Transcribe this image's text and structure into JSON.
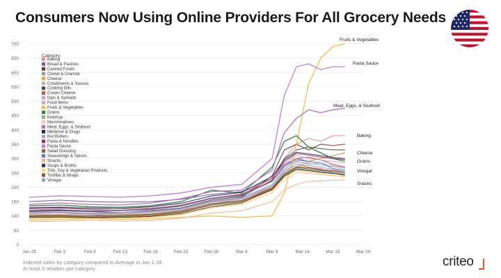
{
  "title": "Consumers Now Using Online Providers For All Grocery Needs",
  "footnote": {
    "line1": "Indexed sales by category compared to Average in Jan 1-28.",
    "line2": "At least 5 retailers per category"
  },
  "logo": "criteo",
  "flag_icon": "us-flag-icon",
  "chart_data": {
    "type": "line",
    "title": "",
    "xlabel": "",
    "ylabel": "",
    "ylim": [
      0,
      700
    ],
    "yticks": [
      0,
      50,
      100,
      150,
      200,
      250,
      300,
      350,
      400,
      450,
      500,
      550,
      600,
      650,
      700
    ],
    "x_ticks": [
      "Jan 29",
      "Feb 3",
      "Feb 8",
      "Feb 13",
      "Feb 18",
      "Feb 23",
      "Feb 28",
      "Mar 4",
      "Mar 9",
      "Mar 14",
      "Mar 19",
      "Mar 24"
    ],
    "legend_title": "Category",
    "legend_position": "top-left",
    "grid": true,
    "x": [
      0,
      5,
      10,
      15,
      20,
      25,
      30,
      35,
      40,
      42,
      44,
      46,
      48,
      50,
      52
    ],
    "series": [
      {
        "name": "Baking",
        "color": "#e8909a",
        "values": [
          120,
          125,
          130,
          125,
          128,
          135,
          160,
          170,
          220,
          300,
          350,
          370,
          360,
          380,
          380
        ]
      },
      {
        "name": "Bread & Pastries",
        "color": "#7b57a8",
        "values": [
          150,
          155,
          150,
          148,
          150,
          158,
          175,
          185,
          230,
          280,
          300,
          290,
          300,
          310,
          320
        ]
      },
      {
        "name": "Canned Foods",
        "color": "#6e3d2e",
        "values": [
          110,
          112,
          108,
          110,
          115,
          125,
          150,
          165,
          240,
          330,
          350,
          330,
          350,
          345,
          350
        ]
      },
      {
        "name": "Cereal & Granola",
        "color": "#9b9b9b",
        "values": [
          100,
          100,
          102,
          105,
          108,
          118,
          140,
          160,
          200,
          250,
          280,
          270,
          265,
          250,
          240
        ]
      },
      {
        "name": "Cheese",
        "color": "#e9a54a",
        "values": [
          95,
          98,
          100,
          98,
          100,
          112,
          138,
          152,
          190,
          240,
          270,
          290,
          300,
          310,
          320
        ]
      },
      {
        "name": "Condiments & Sauces",
        "color": "#b5b5b5",
        "values": [
          105,
          104,
          106,
          104,
          108,
          120,
          145,
          158,
          205,
          260,
          290,
          280,
          285,
          275,
          270
        ]
      },
      {
        "name": "Cooking Oils",
        "color": "#4a4a4a",
        "values": [
          115,
          118,
          115,
          112,
          118,
          128,
          155,
          168,
          225,
          300,
          330,
          340,
          335,
          330,
          330
        ]
      },
      {
        "name": "Cream Cheese",
        "color": "#c0504d",
        "values": [
          125,
          128,
          122,
          120,
          126,
          138,
          162,
          176,
          222,
          275,
          300,
          305,
          295,
          280,
          270
        ]
      },
      {
        "name": "Dips & Spreads",
        "color": "#d8a0c8",
        "values": [
          108,
          110,
          105,
          108,
          112,
          122,
          148,
          160,
          198,
          245,
          270,
          268,
          260,
          255,
          250
        ]
      },
      {
        "name": "Food Items",
        "color": "#c9a0dc",
        "values": [
          130,
          132,
          128,
          130,
          135,
          145,
          168,
          182,
          230,
          285,
          310,
          300,
          295,
          290,
          285
        ]
      },
      {
        "name": "Fruits & Vegetables",
        "color": "#f0c04a",
        "values": [
          85,
          88,
          90,
          88,
          90,
          95,
          100,
          95,
          100,
          180,
          350,
          560,
          650,
          690,
          700
        ]
      },
      {
        "name": "Grains",
        "color": "#2e8b3e",
        "values": [
          135,
          138,
          132,
          130,
          136,
          150,
          190,
          180,
          270,
          360,
          380,
          340,
          320,
          300,
          290
        ]
      },
      {
        "name": "Ketchup",
        "color": "#8ab48a",
        "values": [
          100,
          102,
          98,
          100,
          104,
          114,
          140,
          152,
          195,
          240,
          265,
          260,
          255,
          250,
          245
        ]
      },
      {
        "name": "Marshmallows",
        "color": "#f7c8b0",
        "values": [
          90,
          92,
          95,
          92,
          94,
          104,
          128,
          140,
          180,
          225,
          250,
          248,
          244,
          240,
          236
        ]
      },
      {
        "name": "Meat, Eggs, & Seafood",
        "color": "#b070c0",
        "values": [
          140,
          145,
          140,
          138,
          145,
          160,
          185,
          190,
          260,
          390,
          440,
          470,
          460,
          470,
          475
        ]
      },
      {
        "name": "Medicine & Drugs",
        "color": "#2b2b2b",
        "values": [
          95,
          96,
          94,
          95,
          98,
          108,
          132,
          146,
          192,
          238,
          262,
          258,
          252,
          248,
          244
        ]
      },
      {
        "name": "Nut Butters",
        "color": "#a4a4d4",
        "values": [
          112,
          114,
          110,
          112,
          116,
          126,
          152,
          164,
          210,
          262,
          288,
          284,
          278,
          272,
          266
        ]
      },
      {
        "name": "Pasta & Noodles",
        "color": "#a03050",
        "values": [
          118,
          120,
          116,
          118,
          122,
          134,
          160,
          174,
          232,
          290,
          318,
          312,
          305,
          300,
          296
        ]
      },
      {
        "name": "Pasta Sauce",
        "color": "#c080d0",
        "values": [
          165,
          170,
          168,
          165,
          170,
          180,
          200,
          210,
          300,
          520,
          620,
          630,
          610,
          620,
          620
        ]
      },
      {
        "name": "Salad Dressing",
        "color": "#a0522d",
        "values": [
          102,
          104,
          100,
          102,
          106,
          116,
          142,
          154,
          198,
          246,
          272,
          268,
          262,
          258,
          254
        ]
      },
      {
        "name": "Seasonings & Spices",
        "color": "#4f81bd",
        "values": [
          120,
          122,
          118,
          118,
          124,
          136,
          162,
          172,
          220,
          270,
          295,
          290,
          285,
          265,
          260
        ]
      },
      {
        "name": "Snacks",
        "color": "#f4b183",
        "values": [
          80,
          82,
          85,
          82,
          84,
          92,
          110,
          118,
          150,
          190,
          210,
          220,
          222,
          225,
          225
        ]
      },
      {
        "name": "Soups & Broths",
        "color": "#203864",
        "values": [
          128,
          130,
          126,
          126,
          132,
          144,
          170,
          182,
          238,
          296,
          322,
          316,
          310,
          304,
          300
        ]
      },
      {
        "name": "Tofu, Soy & Vegetarian Products",
        "color": "#ffd966",
        "values": [
          92,
          94,
          90,
          92,
          96,
          106,
          130,
          142,
          186,
          232,
          256,
          252,
          246,
          242,
          238
        ]
      },
      {
        "name": "Tortillas & Wraps",
        "color": "#7f5f3f",
        "values": [
          98,
          100,
          96,
          98,
          102,
          112,
          138,
          150,
          194,
          244,
          268,
          264,
          258,
          254,
          250
        ]
      },
      {
        "name": "Vinegar",
        "color": "#8fa0c8",
        "values": [
          110,
          112,
          108,
          110,
          114,
          124,
          150,
          162,
          206,
          256,
          280,
          276,
          270,
          262,
          255
        ]
      }
    ],
    "annotations": [
      {
        "text": "Fruits & Vegetables",
        "series": "Fruits & Vegetables"
      },
      {
        "text": "Pasta Sauce",
        "series": "Pasta Sauce"
      },
      {
        "text": "Meat, Eggs, & Seafood",
        "series": "Meat, Eggs, & Seafood"
      },
      {
        "text": "Baking",
        "series": "Baking"
      },
      {
        "text": "Cheese",
        "series": "Cheese"
      },
      {
        "text": "Grains",
        "series": "Grains"
      },
      {
        "text": "Vinegar",
        "series": "Vinegar"
      },
      {
        "text": "Snacks",
        "series": "Snacks"
      }
    ]
  }
}
